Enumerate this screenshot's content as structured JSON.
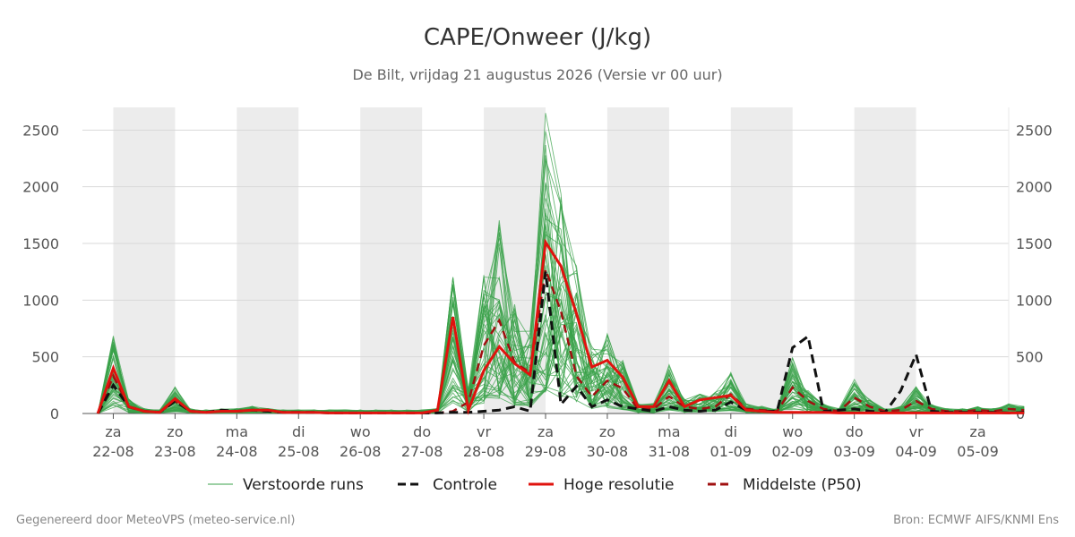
{
  "chart_data": {
    "type": "line",
    "title": "CAPE/Onweer (J/kg)",
    "subtitle": "De Bilt, vrijdag 21 augustus 2026 (Versie vr 00 uur)",
    "x_range_hours": [
      0,
      360
    ],
    "ylim": [
      0,
      2700
    ],
    "y_ticks": [
      0,
      500,
      1000,
      1500,
      2000,
      2500
    ],
    "grid": true,
    "x_tick_labels": [
      {
        "h": 12,
        "day": "za",
        "date": "22-08"
      },
      {
        "h": 36,
        "day": "zo",
        "date": "23-08"
      },
      {
        "h": 60,
        "day": "ma",
        "date": "24-08"
      },
      {
        "h": 84,
        "day": "di",
        "date": "25-08"
      },
      {
        "h": 108,
        "day": "wo",
        "date": "26-08"
      },
      {
        "h": 132,
        "day": "do",
        "date": "27-08"
      },
      {
        "h": 156,
        "day": "vr",
        "date": "28-08"
      },
      {
        "h": 180,
        "day": "za",
        "date": "29-08"
      },
      {
        "h": 204,
        "day": "zo",
        "date": "30-08"
      },
      {
        "h": 228,
        "day": "ma",
        "date": "31-08"
      },
      {
        "h": 252,
        "day": "di",
        "date": "01-09"
      },
      {
        "h": 276,
        "day": "wo",
        "date": "02-09"
      },
      {
        "h": 300,
        "day": "do",
        "date": "03-09"
      },
      {
        "h": 324,
        "day": "vr",
        "date": "04-09"
      },
      {
        "h": 348,
        "day": "za",
        "date": "05-09"
      }
    ],
    "weekend_bands": [
      [
        12,
        36
      ],
      [
        60,
        84
      ],
      [
        108,
        132
      ],
      [
        156,
        180
      ],
      [
        204,
        228
      ],
      [
        252,
        276
      ],
      [
        300,
        324
      ]
    ],
    "step_hours": 6,
    "hoge_resolutie": [
      0,
      400,
      60,
      20,
      10,
      130,
      20,
      10,
      20,
      20,
      30,
      30,
      10,
      10,
      10,
      5,
      5,
      5,
      5,
      5,
      5,
      5,
      30,
      850,
      30,
      380,
      590,
      440,
      340,
      1510,
      1300,
      880,
      410,
      470,
      320,
      60,
      60,
      290,
      60,
      120,
      140,
      160,
      30,
      20,
      10,
      10,
      10,
      10,
      5,
      5,
      5,
      5,
      5,
      5,
      5,
      5,
      5,
      5,
      5,
      5,
      5
    ],
    "controle": [
      0,
      250,
      60,
      20,
      10,
      110,
      20,
      10,
      30,
      20,
      30,
      20,
      10,
      10,
      10,
      5,
      5,
      5,
      5,
      5,
      5,
      5,
      5,
      10,
      10,
      20,
      30,
      60,
      20,
      1250,
      80,
      240,
      60,
      120,
      60,
      40,
      20,
      60,
      30,
      20,
      30,
      100,
      30,
      20,
      20,
      580,
      680,
      20,
      30,
      40,
      20,
      10,
      200,
      520,
      20,
      10,
      10,
      10,
      10,
      5,
      10
    ],
    "middelste_p50": [
      0,
      330,
      60,
      20,
      10,
      110,
      20,
      10,
      20,
      20,
      30,
      20,
      10,
      10,
      10,
      5,
      5,
      5,
      5,
      5,
      5,
      5,
      5,
      20,
      100,
      600,
      820,
      450,
      360,
      1270,
      900,
      330,
      150,
      290,
      220,
      40,
      40,
      150,
      60,
      40,
      60,
      170,
      40,
      30,
      20,
      230,
      110,
      40,
      20,
      140,
      60,
      20,
      30,
      110,
      40,
      20,
      20,
      30,
      20,
      40,
      30
    ],
    "legend": [
      {
        "key": "ens",
        "label": "Verstoorde runs",
        "color": "#3aa14a",
        "style": "thin"
      },
      {
        "key": "ctrl",
        "label": "Controle",
        "color": "#111111",
        "style": "dashed"
      },
      {
        "key": "hres",
        "label": "Hoge resolutie",
        "color": "#e0130e",
        "style": "solid"
      },
      {
        "key": "p50",
        "label": "Middelste (P50)",
        "color": "#a01010",
        "style": "dashed"
      }
    ],
    "ensemble_members": 50
  },
  "footer": {
    "left": "Gegenereerd door MeteoVPS (meteo-service.nl)",
    "right": "Bron: ECMWF AIFS/KNMI Ens"
  },
  "colors": {
    "band": "#ececec",
    "grid": "#d9d9d9",
    "ensemble": "#3aa14a",
    "controle": "#111111",
    "hoge_resolutie": "#e0130e",
    "p50": "#a01010"
  }
}
